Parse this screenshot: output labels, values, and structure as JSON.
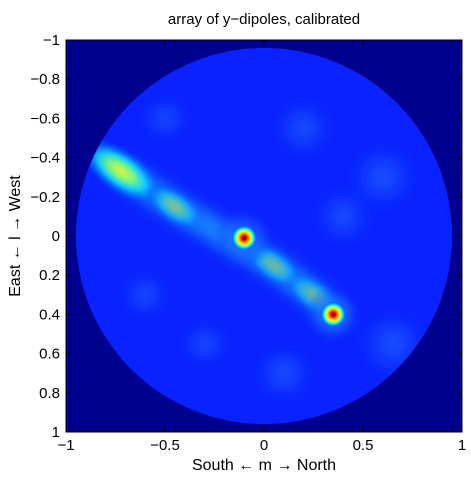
{
  "chart_data": {
    "type": "heatmap",
    "title": "array of y−dipoles, calibrated",
    "xlabel": "South ← m → North",
    "ylabel": "East ← l → West",
    "xlim": [
      -1,
      1
    ],
    "ylim": [
      -1,
      1
    ],
    "y_axis_reversed": true,
    "x_ticks": [
      -1,
      -0.5,
      0,
      0.5,
      1
    ],
    "x_tick_labels": [
      "−1",
      "−0.5",
      "0",
      "0.5",
      "1"
    ],
    "y_ticks": [
      -1,
      -0.8,
      -0.6,
      -0.4,
      -0.2,
      0,
      0.2,
      0.4,
      0.6,
      0.8,
      1
    ],
    "y_tick_labels": [
      "−1",
      "−0.8",
      "−0.6",
      "−0.4",
      "−0.2",
      "0",
      "0.2",
      "0.4",
      "0.6",
      "0.8",
      "1"
    ],
    "grid": false,
    "colormap": "jet",
    "colors": {
      "background": "#00008f",
      "disk_base": "#0a22ff"
    },
    "field_of_view": {
      "shape": "circle",
      "center": [
        0,
        0
      ],
      "radius": 0.95
    },
    "sources": [
      {
        "m": -0.1,
        "l": 0.01,
        "intensity": 1.0
      },
      {
        "m": 0.35,
        "l": 0.4,
        "intensity": 0.95
      }
    ],
    "extended_emission": [
      {
        "m": -0.72,
        "l": -0.33,
        "intensity": 0.62
      },
      {
        "m": -0.45,
        "l": -0.15,
        "intensity": 0.35
      },
      {
        "m": 0.05,
        "l": 0.15,
        "intensity": 0.3
      },
      {
        "m": 0.25,
        "l": 0.3,
        "intensity": 0.28
      }
    ]
  }
}
